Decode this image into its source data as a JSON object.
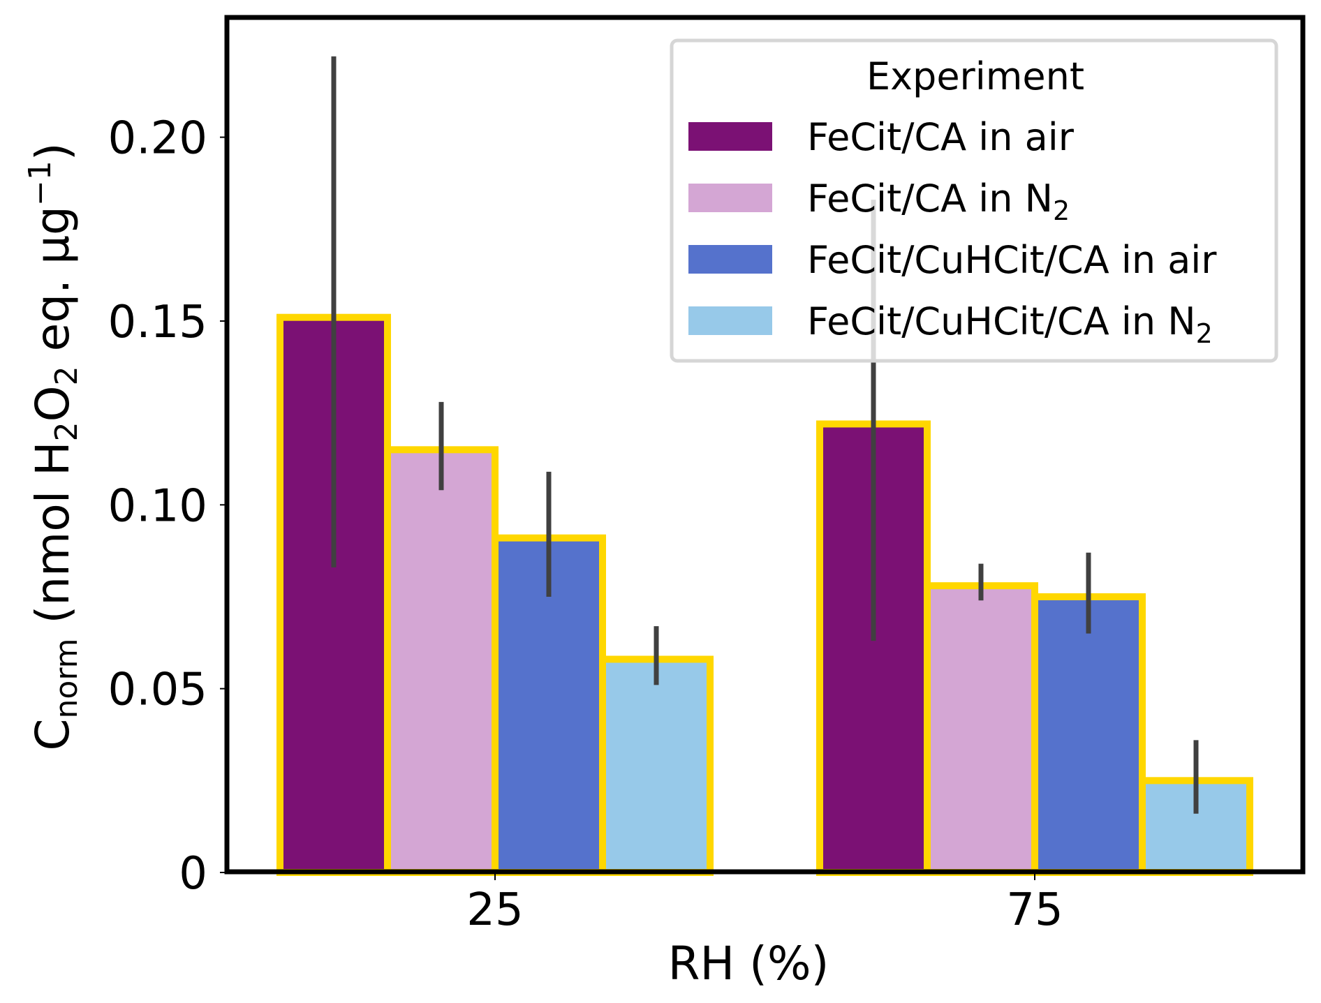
{
  "chart_data": {
    "type": "bar",
    "title": "",
    "xlabel": "RH (%)",
    "ylabel": {
      "main": "C",
      "main_sub": "norm",
      "unit_prefix": " (nmol H",
      "sub1": "2",
      "mid": "O",
      "sub2": "2",
      "unit_suffix": " eq. µg",
      "sup": "−1",
      "close": ")"
    },
    "ylabel_plain": "Cnorm (nmol H2O2 eq. µg−1)",
    "categories": [
      "25",
      "75"
    ],
    "ylim": [
      0,
      0.233
    ],
    "yticks": [
      0,
      0.05,
      0.1,
      0.15,
      0.2
    ],
    "ytick_labels": [
      "0",
      "0.05",
      "0.10",
      "0.15",
      "0.20"
    ],
    "grid": false,
    "bar_edge_color": "#FFD700",
    "errorbar_color": "#404040",
    "series": [
      {
        "name": "FeCit/CA in air",
        "name_base": "FeCit/CA in air",
        "name_sub": "",
        "color": "#7B1174",
        "values": [
          0.151,
          0.122
        ],
        "err_low": [
          0.083,
          0.063
        ],
        "err_high": [
          0.222,
          0.183
        ]
      },
      {
        "name": "FeCit/CA in N2",
        "name_base": "FeCit/CA in N",
        "name_sub": "2",
        "color": "#D4A6D4",
        "values": [
          0.115,
          0.078
        ],
        "err_low": [
          0.104,
          0.074
        ],
        "err_high": [
          0.128,
          0.084
        ]
      },
      {
        "name": "FeCit/CuHCit/CA in air",
        "name_base": "FeCit/CuHCit/CA in air",
        "name_sub": "",
        "color": "#5572CC",
        "values": [
          0.091,
          0.075
        ],
        "err_low": [
          0.075,
          0.065
        ],
        "err_high": [
          0.109,
          0.087
        ]
      },
      {
        "name": "FeCit/CuHCit/CA in N2",
        "name_base": "FeCit/CuHCit/CA in N",
        "name_sub": "2",
        "color": "#97C9E9",
        "values": [
          0.058,
          0.025
        ],
        "err_low": [
          0.051,
          0.016
        ],
        "err_high": [
          0.067,
          0.036
        ]
      }
    ],
    "legend": {
      "title": "Experiment",
      "position": "top-right"
    }
  }
}
